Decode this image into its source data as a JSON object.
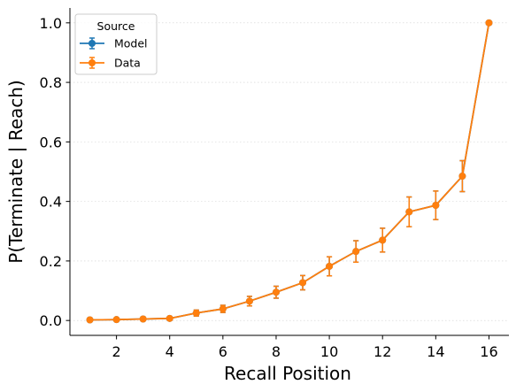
{
  "chart_data": {
    "type": "line",
    "xlabel": "Recall Position",
    "ylabel": "P(Terminate | Reach)",
    "xlim": [
      0.25,
      16.75
    ],
    "ylim": [
      -0.05,
      1.05
    ],
    "x_ticks": [
      2,
      4,
      6,
      8,
      10,
      12,
      14,
      16
    ],
    "y_ticks": [
      0.0,
      0.2,
      0.4,
      0.6,
      0.8,
      1.0
    ],
    "x_tick_labels": [
      "2",
      "4",
      "6",
      "8",
      "10",
      "12",
      "14",
      "16"
    ],
    "y_tick_labels": [
      "0.0",
      "0.2",
      "0.4",
      "0.6",
      "0.8",
      "1.0"
    ],
    "grid": "horizontal-dotted",
    "legend": {
      "title": "Source",
      "placement": "top-left"
    },
    "x": [
      1,
      2,
      3,
      4,
      5,
      6,
      7,
      8,
      9,
      10,
      11,
      12,
      13,
      14,
      15,
      16
    ],
    "series": [
      {
        "name": "Model",
        "color": "#1f77b4",
        "values": [
          0.002,
          0.003,
          0.005,
          0.007,
          0.025,
          0.039,
          0.065,
          0.095,
          0.127,
          0.182,
          0.232,
          0.27,
          0.365,
          0.387,
          0.485,
          1.0
        ],
        "err": [
          0.002,
          0.002,
          0.004,
          0.004,
          0.01,
          0.012,
          0.016,
          0.02,
          0.024,
          0.032,
          0.036,
          0.04,
          0.05,
          0.048,
          0.052,
          0.0
        ]
      },
      {
        "name": "Data",
        "color": "#ff7f0e",
        "values": [
          0.002,
          0.003,
          0.005,
          0.007,
          0.025,
          0.039,
          0.065,
          0.095,
          0.127,
          0.182,
          0.232,
          0.27,
          0.365,
          0.387,
          0.485,
          1.0
        ],
        "err": [
          0.002,
          0.002,
          0.004,
          0.004,
          0.01,
          0.012,
          0.016,
          0.02,
          0.024,
          0.032,
          0.036,
          0.04,
          0.05,
          0.048,
          0.052,
          0.0
        ]
      }
    ]
  }
}
